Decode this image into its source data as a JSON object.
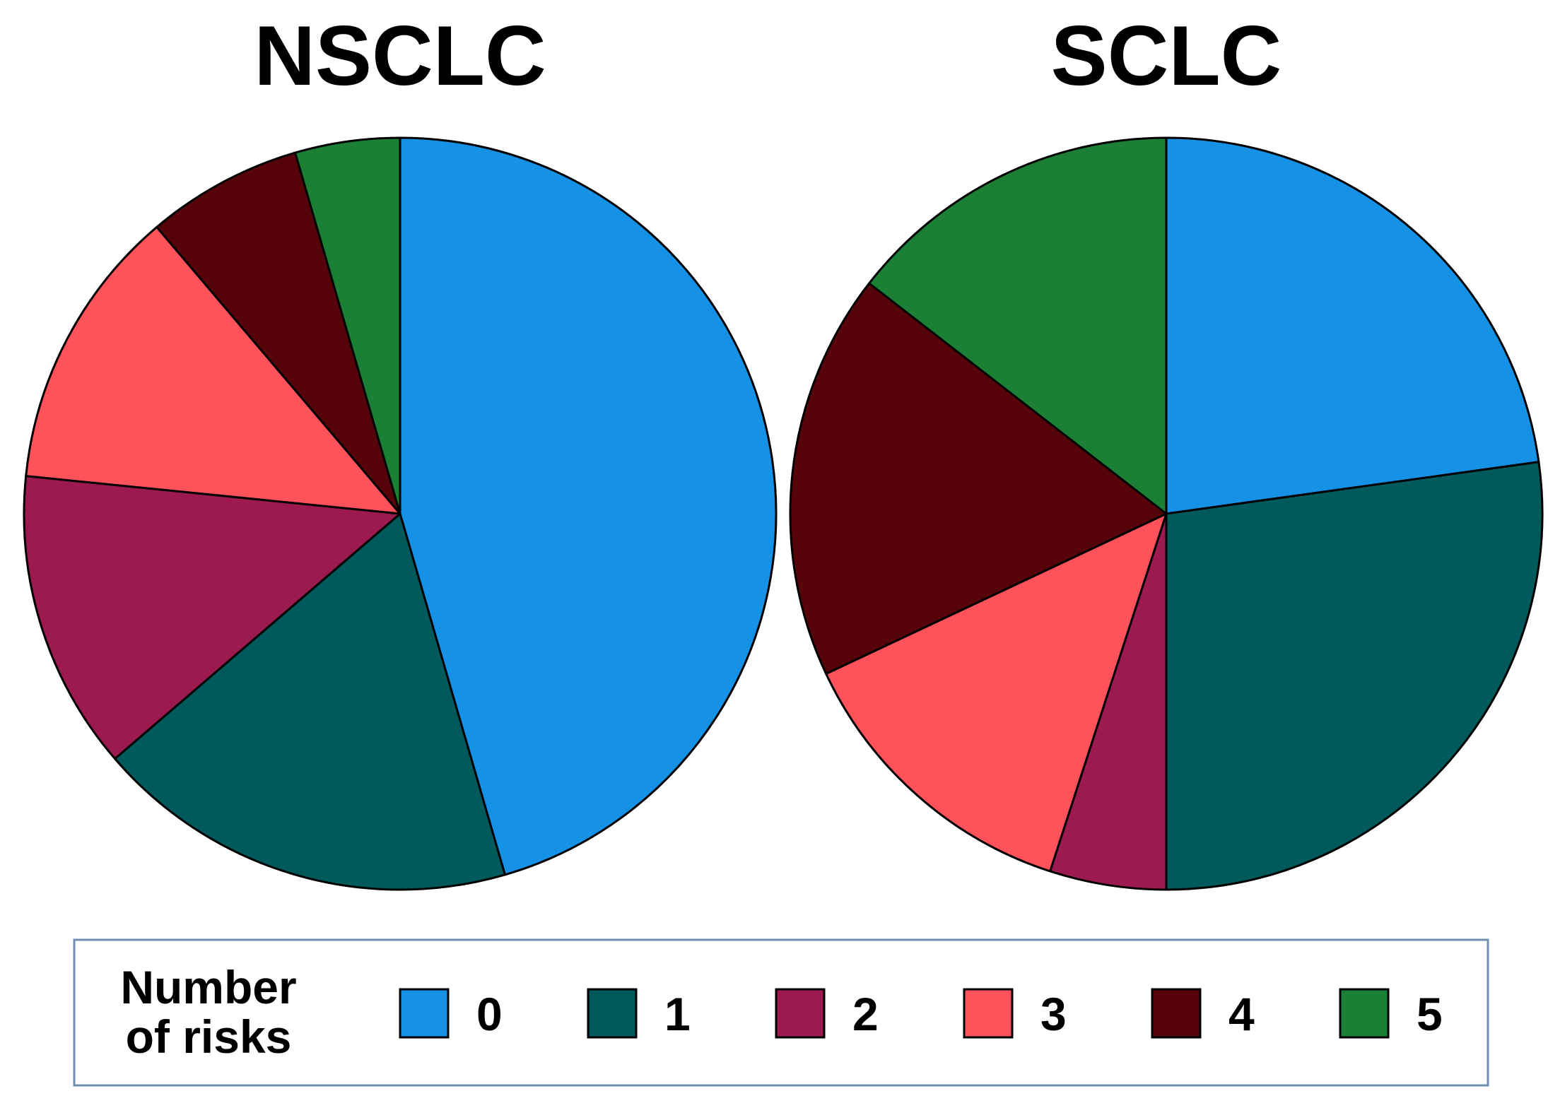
{
  "chart_data": [
    {
      "type": "pie",
      "title": "NSCLC",
      "categories": [
        "0",
        "1",
        "2",
        "3",
        "4",
        "5"
      ],
      "values": [
        45.5,
        18.2,
        12.9,
        12.2,
        6.7,
        4.5
      ]
    },
    {
      "type": "pie",
      "title": "SCLC",
      "categories": [
        "0",
        "1",
        "2",
        "3",
        "4",
        "5"
      ],
      "values": [
        22.8,
        27.2,
        5.0,
        13.0,
        17.5,
        14.5
      ]
    }
  ],
  "legend": {
    "title_lines": [
      "Number",
      "of risks"
    ],
    "placement": "bottom",
    "items": [
      {
        "label": "0",
        "color": "#1591E6"
      },
      {
        "label": "1",
        "color": "#005A5C"
      },
      {
        "label": "2",
        "color": "#9C1A4F"
      },
      {
        "label": "3",
        "color": "#FF525A"
      },
      {
        "label": "4",
        "color": "#560409"
      },
      {
        "label": "5",
        "color": "#1B7F36"
      }
    ]
  }
}
